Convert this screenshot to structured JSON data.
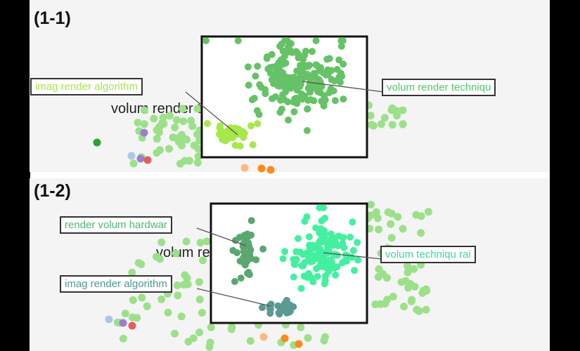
{
  "panels": [
    {
      "label": "(1-1)",
      "background_text": "volum render techniqu",
      "callouts": [
        {
          "text": "imag render algorithm",
          "color": "#a6e84a"
        },
        {
          "text": "volum render techniqu",
          "color": "#4fc96a"
        }
      ]
    },
    {
      "label": "(1-2)",
      "background_text": "volum render techniqu",
      "callouts": [
        {
          "text": "render volum hardwar",
          "color": "#4fb870"
        },
        {
          "text": "volum techniqu rai",
          "color": "#3ed89a"
        },
        {
          "text": "imag render algorithm",
          "color": "#4a9a92"
        }
      ]
    }
  ],
  "colors": {
    "background_points": "#9ce08a",
    "outlier_purple": "#9a7fd0",
    "outlier_blue": "#b0c4ea",
    "outlier_orange": "#ff8a1a",
    "outlier_peach": "#ffb880",
    "outlier_darkgreen": "#2aa52a",
    "outlier_red": "#e06060"
  },
  "chart_data": [
    {
      "type": "scatter",
      "panel": "(1-1)",
      "series": [
        {
          "name": "imag render algorithm",
          "color": "#a6e84a",
          "cluster_center": [
            0.17,
            0.8
          ],
          "point_count": 32
        },
        {
          "name": "volum render techniqu",
          "color": "#66c266",
          "cluster_center": [
            0.6,
            0.35
          ],
          "point_count": 190
        }
      ]
    },
    {
      "type": "scatter",
      "panel": "(1-2)",
      "series": [
        {
          "name": "render volum hardwar",
          "color": "#5aa870",
          "cluster_center": [
            0.22,
            0.4
          ],
          "point_count": 40
        },
        {
          "name": "volum techniqu rai",
          "color": "#44f0a0",
          "cluster_center": [
            0.72,
            0.4
          ],
          "point_count": 130
        },
        {
          "name": "imag render algorithm",
          "color": "#5a9a92",
          "cluster_center": [
            0.45,
            0.87
          ],
          "point_count": 24
        }
      ]
    }
  ]
}
